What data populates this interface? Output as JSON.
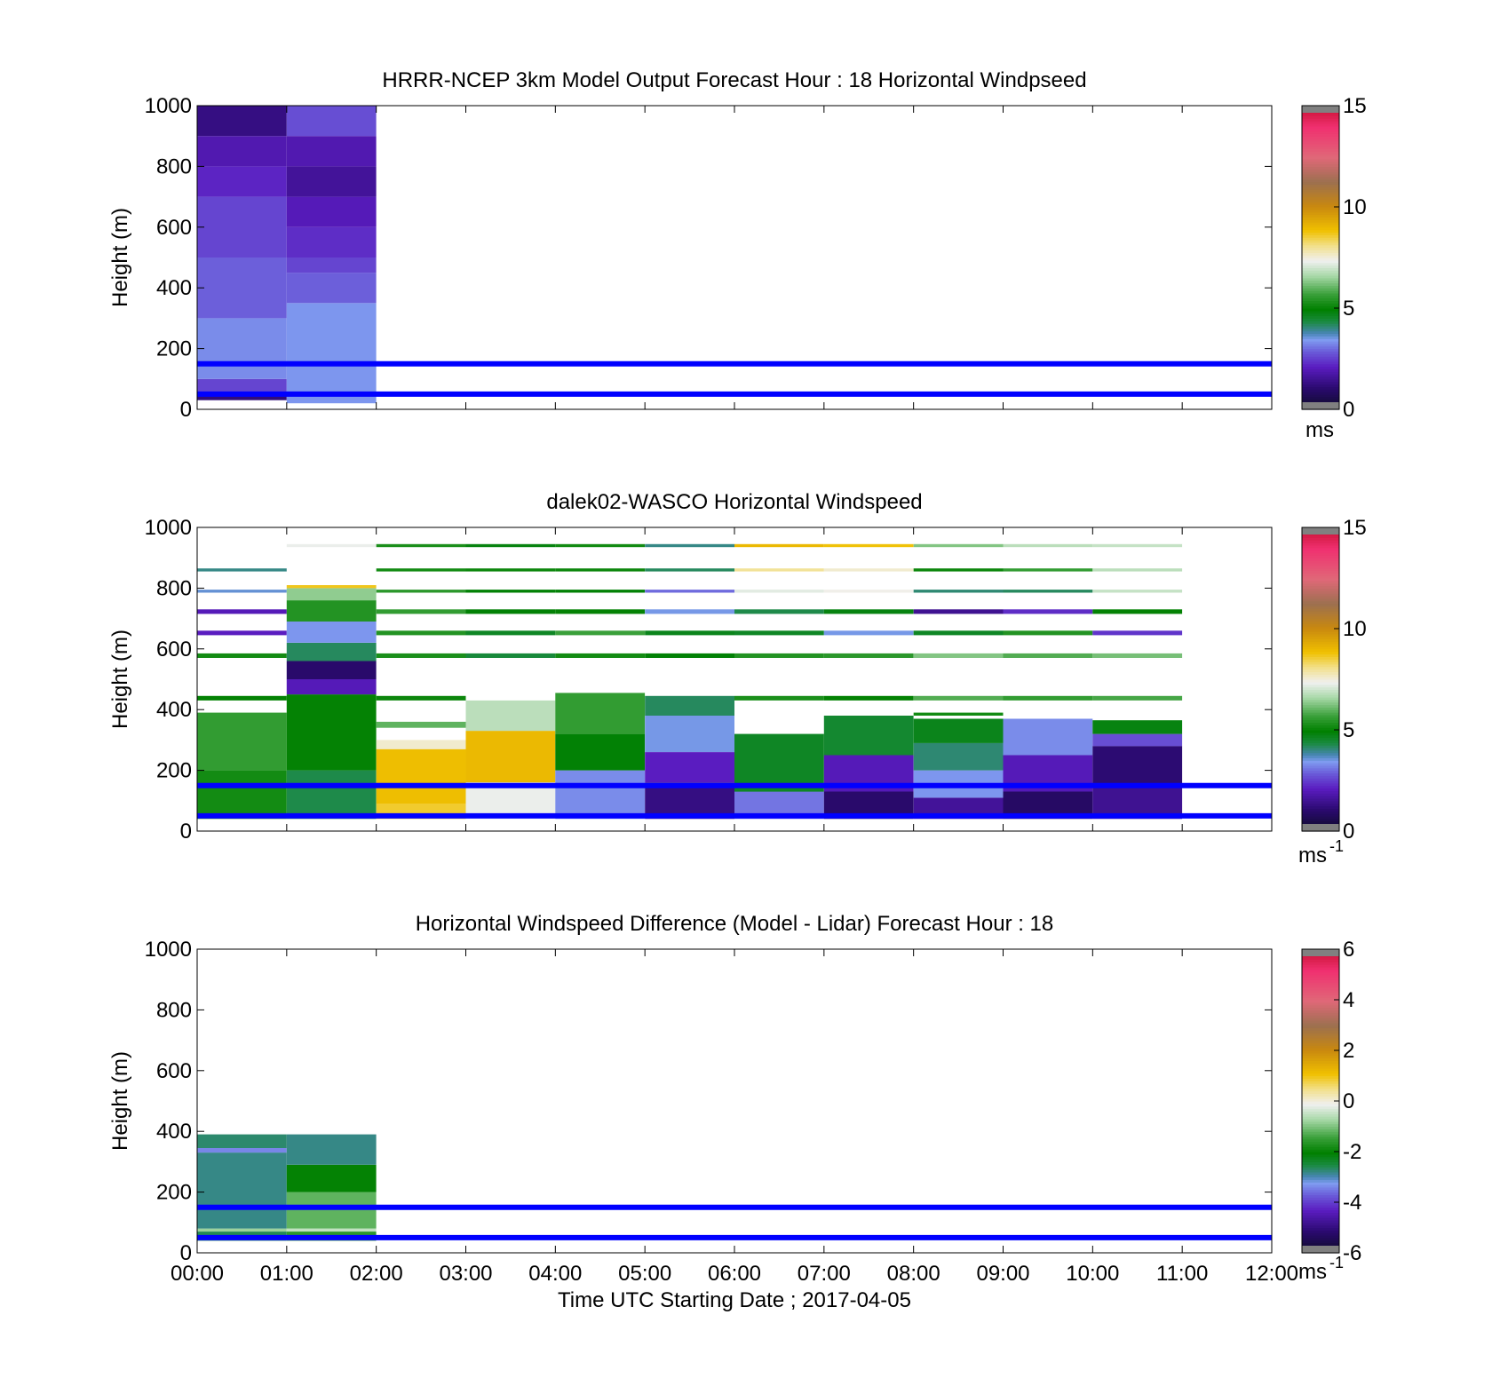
{
  "figure": {
    "xlabel": "Time UTC  Starting Date ; 2017-04-05",
    "time_ticks": [
      "00:00",
      "01:00",
      "02:00",
      "03:00",
      "04:00",
      "05:00",
      "06:00",
      "07:00",
      "08:00",
      "09:00",
      "10:00",
      "11:00",
      "12:00"
    ],
    "line_color": "#0000ff"
  },
  "chart_data": [
    {
      "type": "heatmap",
      "title": "HRRR-NCEP 3km Model Output   Forecast Hour : 18 Horizontal Windpseed",
      "ylabel": "Height (m)",
      "xlim": [
        0,
        12
      ],
      "ylim": [
        0,
        1000
      ],
      "yticks": [
        "0",
        "200",
        "400",
        "600",
        "800",
        "1000"
      ],
      "colorbar": {
        "min": 0,
        "max": 15,
        "ticks": [
          "0",
          "5",
          "10",
          "15"
        ],
        "unit": "ms",
        "unit_sup": ""
      },
      "reference_heights": [
        150,
        50
      ],
      "cells": [
        {
          "t0": 0,
          "t1": 1,
          "z0": 30,
          "z1": 50,
          "v": 1.2
        },
        {
          "t0": 0,
          "t1": 1,
          "z0": 50,
          "z1": 100,
          "v": 2.6
        },
        {
          "t0": 0,
          "t1": 1,
          "z0": 100,
          "z1": 300,
          "v": 3.3
        },
        {
          "t0": 0,
          "t1": 1,
          "z0": 300,
          "z1": 500,
          "v": 2.9
        },
        {
          "t0": 0,
          "t1": 1,
          "z0": 500,
          "z1": 700,
          "v": 2.6
        },
        {
          "t0": 0,
          "t1": 1,
          "z0": 700,
          "z1": 800,
          "v": 2.2
        },
        {
          "t0": 0,
          "t1": 1,
          "z0": 800,
          "z1": 900,
          "v": 1.9
        },
        {
          "t0": 0,
          "t1": 1,
          "z0": 900,
          "z1": 1000,
          "v": 1.3
        },
        {
          "t0": 1,
          "t1": 2,
          "z0": 20,
          "z1": 350,
          "v": 3.4
        },
        {
          "t0": 1,
          "t1": 2,
          "z0": 350,
          "z1": 450,
          "v": 2.9
        },
        {
          "t0": 1,
          "t1": 2,
          "z0": 450,
          "z1": 500,
          "v": 2.6
        },
        {
          "t0": 1,
          "t1": 2,
          "z0": 500,
          "z1": 600,
          "v": 2.3
        },
        {
          "t0": 1,
          "t1": 2,
          "z0": 600,
          "z1": 700,
          "v": 2.0
        },
        {
          "t0": 1,
          "t1": 2,
          "z0": 700,
          "z1": 800,
          "v": 1.6
        },
        {
          "t0": 1,
          "t1": 2,
          "z0": 800,
          "z1": 900,
          "v": 1.9
        },
        {
          "t0": 1,
          "t1": 2,
          "z0": 900,
          "z1": 1000,
          "v": 2.7
        }
      ]
    },
    {
      "type": "heatmap",
      "title": "dalek02-WASCO  Horizontal Windspeed",
      "ylabel": "Height (m)",
      "xlim": [
        0,
        12
      ],
      "ylim": [
        0,
        1000
      ],
      "yticks": [
        "0",
        "200",
        "400",
        "600",
        "800",
        "1000"
      ],
      "colorbar": {
        "min": 0,
        "max": 15,
        "ticks": [
          "0",
          "5",
          "10",
          "15"
        ],
        "unit": "ms",
        "unit_sup": "-1"
      },
      "reference_heights": [
        150,
        50
      ],
      "cells": [
        {
          "t0": 0,
          "t1": 1,
          "z0": 40,
          "z1": 200,
          "v": 5.2
        },
        {
          "t0": 0,
          "t1": 1,
          "z0": 200,
          "z1": 390,
          "v": 5.6
        },
        {
          "t0": 0,
          "t1": 1,
          "z0": 430,
          "z1": 445,
          "v": 5.0
        },
        {
          "t0": 0,
          "t1": 1,
          "z0": 570,
          "z1": 585,
          "v": 5.2
        },
        {
          "t0": 0,
          "t1": 1,
          "z0": 645,
          "z1": 660,
          "v": 2.1
        },
        {
          "t0": 0,
          "t1": 1,
          "z0": 715,
          "z1": 730,
          "v": 2.0
        },
        {
          "t0": 0,
          "t1": 1,
          "z0": 785,
          "z1": 795,
          "v": 3.6
        },
        {
          "t0": 0,
          "t1": 1,
          "z0": 855,
          "z1": 865,
          "v": 4.0
        },
        {
          "t0": 1,
          "t1": 2,
          "z0": 40,
          "z1": 200,
          "v": 4.3
        },
        {
          "t0": 1,
          "t1": 2,
          "z0": 200,
          "z1": 450,
          "v": 5.0
        },
        {
          "t0": 1,
          "t1": 2,
          "z0": 450,
          "z1": 500,
          "v": 2.0
        },
        {
          "t0": 1,
          "t1": 2,
          "z0": 500,
          "z1": 560,
          "v": 1.0
        },
        {
          "t0": 1,
          "t1": 2,
          "z0": 560,
          "z1": 620,
          "v": 4.2
        },
        {
          "t0": 1,
          "t1": 2,
          "z0": 620,
          "z1": 690,
          "v": 3.4
        },
        {
          "t0": 1,
          "t1": 2,
          "z0": 690,
          "z1": 760,
          "v": 5.4
        },
        {
          "t0": 1,
          "t1": 2,
          "z0": 760,
          "z1": 800,
          "v": 6.4
        },
        {
          "t0": 1,
          "t1": 2,
          "z0": 800,
          "z1": 810,
          "v": 8.7
        },
        {
          "t0": 1,
          "t1": 2,
          "z0": 935,
          "z1": 945,
          "v": 7.3
        },
        {
          "t0": 2,
          "t1": 3,
          "z0": 40,
          "z1": 90,
          "v": 8.6
        },
        {
          "t0": 2,
          "t1": 3,
          "z0": 90,
          "z1": 270,
          "v": 8.9
        },
        {
          "t0": 2,
          "t1": 3,
          "z0": 270,
          "z1": 300,
          "v": 7.6
        },
        {
          "t0": 2,
          "t1": 3,
          "z0": 340,
          "z1": 360,
          "v": 6.0
        },
        {
          "t0": 2,
          "t1": 3,
          "z0": 430,
          "z1": 445,
          "v": 5.1
        },
        {
          "t0": 2,
          "t1": 3,
          "z0": 570,
          "z1": 585,
          "v": 5.3
        },
        {
          "t0": 2,
          "t1": 3,
          "z0": 645,
          "z1": 660,
          "v": 5.4
        },
        {
          "t0": 2,
          "t1": 3,
          "z0": 715,
          "z1": 730,
          "v": 5.6
        },
        {
          "t0": 2,
          "t1": 3,
          "z0": 785,
          "z1": 795,
          "v": 5.5
        },
        {
          "t0": 2,
          "t1": 3,
          "z0": 855,
          "z1": 865,
          "v": 5.2
        },
        {
          "t0": 2,
          "t1": 3,
          "z0": 935,
          "z1": 945,
          "v": 5.3
        },
        {
          "t0": 3,
          "t1": 4,
          "z0": 40,
          "z1": 160,
          "v": 7.3
        },
        {
          "t0": 3,
          "t1": 4,
          "z0": 160,
          "z1": 330,
          "v": 9.0
        },
        {
          "t0": 3,
          "t1": 4,
          "z0": 330,
          "z1": 430,
          "v": 6.8
        },
        {
          "t0": 3,
          "t1": 4,
          "z0": 570,
          "z1": 585,
          "v": 4.4
        },
        {
          "t0": 3,
          "t1": 4,
          "z0": 645,
          "z1": 660,
          "v": 4.6
        },
        {
          "t0": 3,
          "t1": 4,
          "z0": 715,
          "z1": 730,
          "v": 4.9
        },
        {
          "t0": 3,
          "t1": 4,
          "z0": 785,
          "z1": 795,
          "v": 4.9
        },
        {
          "t0": 3,
          "t1": 4,
          "z0": 855,
          "z1": 865,
          "v": 5.1
        },
        {
          "t0": 3,
          "t1": 4,
          "z0": 935,
          "z1": 945,
          "v": 4.8
        },
        {
          "t0": 4,
          "t1": 5,
          "z0": 40,
          "z1": 200,
          "v": 3.3
        },
        {
          "t0": 4,
          "t1": 5,
          "z0": 200,
          "z1": 320,
          "v": 4.9
        },
        {
          "t0": 4,
          "t1": 5,
          "z0": 320,
          "z1": 455,
          "v": 5.6
        },
        {
          "t0": 4,
          "t1": 5,
          "z0": 570,
          "z1": 585,
          "v": 5.2
        },
        {
          "t0": 4,
          "t1": 5,
          "z0": 645,
          "z1": 660,
          "v": 5.7
        },
        {
          "t0": 4,
          "t1": 5,
          "z0": 715,
          "z1": 730,
          "v": 5.0
        },
        {
          "t0": 4,
          "t1": 5,
          "z0": 785,
          "z1": 795,
          "v": 4.9
        },
        {
          "t0": 4,
          "t1": 5,
          "z0": 855,
          "z1": 865,
          "v": 5.1
        },
        {
          "t0": 4,
          "t1": 5,
          "z0": 935,
          "z1": 945,
          "v": 5.2
        },
        {
          "t0": 5,
          "t1": 6,
          "z0": 40,
          "z1": 160,
          "v": 1.3
        },
        {
          "t0": 5,
          "t1": 6,
          "z0": 160,
          "z1": 260,
          "v": 2.1
        },
        {
          "t0": 5,
          "t1": 6,
          "z0": 260,
          "z1": 380,
          "v": 3.5
        },
        {
          "t0": 5,
          "t1": 6,
          "z0": 380,
          "z1": 445,
          "v": 4.2
        },
        {
          "t0": 5,
          "t1": 6,
          "z0": 570,
          "z1": 585,
          "v": 4.9
        },
        {
          "t0": 5,
          "t1": 6,
          "z0": 645,
          "z1": 660,
          "v": 4.7
        },
        {
          "t0": 5,
          "t1": 6,
          "z0": 715,
          "z1": 730,
          "v": 3.5
        },
        {
          "t0": 5,
          "t1": 6,
          "z0": 785,
          "z1": 795,
          "v": 3.0
        },
        {
          "t0": 5,
          "t1": 6,
          "z0": 855,
          "z1": 865,
          "v": 4.2
        },
        {
          "t0": 5,
          "t1": 6,
          "z0": 935,
          "z1": 945,
          "v": 4.0
        },
        {
          "t0": 6,
          "t1": 7,
          "z0": 40,
          "z1": 130,
          "v": 3.1
        },
        {
          "t0": 6,
          "t1": 7,
          "z0": 130,
          "z1": 320,
          "v": 4.6
        },
        {
          "t0": 6,
          "t1": 7,
          "z0": 430,
          "z1": 445,
          "v": 5.3
        },
        {
          "t0": 6,
          "t1": 7,
          "z0": 570,
          "z1": 585,
          "v": 5.4
        },
        {
          "t0": 6,
          "t1": 7,
          "z0": 645,
          "z1": 660,
          "v": 4.6
        },
        {
          "t0": 6,
          "t1": 7,
          "z0": 715,
          "z1": 730,
          "v": 4.3
        },
        {
          "t0": 6,
          "t1": 7,
          "z0": 785,
          "z1": 795,
          "v": 7.2
        },
        {
          "t0": 6,
          "t1": 7,
          "z0": 855,
          "z1": 865,
          "v": 8.0
        },
        {
          "t0": 6,
          "t1": 7,
          "z0": 935,
          "z1": 945,
          "v": 9.0
        },
        {
          "t0": 7,
          "t1": 8,
          "z0": 40,
          "z1": 130,
          "v": 1.0
        },
        {
          "t0": 7,
          "t1": 8,
          "z0": 130,
          "z1": 250,
          "v": 2.0
        },
        {
          "t0": 7,
          "t1": 8,
          "z0": 250,
          "z1": 380,
          "v": 4.5
        },
        {
          "t0": 7,
          "t1": 8,
          "z0": 430,
          "z1": 445,
          "v": 5.0
        },
        {
          "t0": 7,
          "t1": 8,
          "z0": 570,
          "z1": 585,
          "v": 5.5
        },
        {
          "t0": 7,
          "t1": 8,
          "z0": 645,
          "z1": 660,
          "v": 3.5
        },
        {
          "t0": 7,
          "t1": 8,
          "z0": 715,
          "z1": 730,
          "v": 4.8
        },
        {
          "t0": 7,
          "t1": 8,
          "z0": 785,
          "z1": 795,
          "v": 7.4
        },
        {
          "t0": 7,
          "t1": 8,
          "z0": 855,
          "z1": 865,
          "v": 7.6
        },
        {
          "t0": 7,
          "t1": 8,
          "z0": 935,
          "z1": 945,
          "v": 8.8
        },
        {
          "t0": 8,
          "t1": 9,
          "z0": 40,
          "z1": 110,
          "v": 1.6
        },
        {
          "t0": 8,
          "t1": 9,
          "z0": 110,
          "z1": 200,
          "v": 3.4
        },
        {
          "t0": 8,
          "t1": 9,
          "z0": 200,
          "z1": 290,
          "v": 4.1
        },
        {
          "t0": 8,
          "t1": 9,
          "z0": 290,
          "z1": 370,
          "v": 4.7
        },
        {
          "t0": 8,
          "t1": 9,
          "z0": 380,
          "z1": 390,
          "v": 5.2
        },
        {
          "t0": 8,
          "t1": 9,
          "z0": 430,
          "z1": 445,
          "v": 5.9
        },
        {
          "t0": 8,
          "t1": 9,
          "z0": 570,
          "z1": 585,
          "v": 6.3
        },
        {
          "t0": 8,
          "t1": 9,
          "z0": 645,
          "z1": 660,
          "v": 4.6
        },
        {
          "t0": 8,
          "t1": 9,
          "z0": 715,
          "z1": 730,
          "v": 1.5
        },
        {
          "t0": 8,
          "t1": 9,
          "z0": 785,
          "z1": 795,
          "v": 4.1
        },
        {
          "t0": 8,
          "t1": 9,
          "z0": 855,
          "z1": 865,
          "v": 5.1
        },
        {
          "t0": 8,
          "t1": 9,
          "z0": 935,
          "z1": 945,
          "v": 6.3
        },
        {
          "t0": 9,
          "t1": 10,
          "z0": 40,
          "z1": 130,
          "v": 0.9
        },
        {
          "t0": 9,
          "t1": 10,
          "z0": 130,
          "z1": 250,
          "v": 2.0
        },
        {
          "t0": 9,
          "t1": 10,
          "z0": 250,
          "z1": 370,
          "v": 3.3
        },
        {
          "t0": 9,
          "t1": 10,
          "z0": 430,
          "z1": 445,
          "v": 5.6
        },
        {
          "t0": 9,
          "t1": 10,
          "z0": 570,
          "z1": 585,
          "v": 5.9
        },
        {
          "t0": 9,
          "t1": 10,
          "z0": 645,
          "z1": 660,
          "v": 5.4
        },
        {
          "t0": 9,
          "t1": 10,
          "z0": 715,
          "z1": 730,
          "v": 2.3
        },
        {
          "t0": 9,
          "t1": 10,
          "z0": 785,
          "z1": 795,
          "v": 4.2
        },
        {
          "t0": 9,
          "t1": 10,
          "z0": 855,
          "z1": 865,
          "v": 5.6
        },
        {
          "t0": 9,
          "t1": 10,
          "z0": 935,
          "z1": 945,
          "v": 6.8
        },
        {
          "t0": 10,
          "t1": 11,
          "z0": 40,
          "z1": 150,
          "v": 1.5
        },
        {
          "t0": 10,
          "t1": 11,
          "z0": 150,
          "z1": 280,
          "v": 1.1
        },
        {
          "t0": 10,
          "t1": 11,
          "z0": 280,
          "z1": 320,
          "v": 2.7
        },
        {
          "t0": 10,
          "t1": 11,
          "z0": 320,
          "z1": 365,
          "v": 4.8
        },
        {
          "t0": 10,
          "t1": 11,
          "z0": 430,
          "z1": 445,
          "v": 5.8
        },
        {
          "t0": 10,
          "t1": 11,
          "z0": 570,
          "z1": 585,
          "v": 6.2
        },
        {
          "t0": 10,
          "t1": 11,
          "z0": 645,
          "z1": 660,
          "v": 2.4
        },
        {
          "t0": 10,
          "t1": 11,
          "z0": 715,
          "z1": 730,
          "v": 5.0
        },
        {
          "t0": 10,
          "t1": 11,
          "z0": 785,
          "z1": 795,
          "v": 6.9
        },
        {
          "t0": 10,
          "t1": 11,
          "z0": 855,
          "z1": 865,
          "v": 6.8
        },
        {
          "t0": 10,
          "t1": 11,
          "z0": 935,
          "z1": 945,
          "v": 6.9
        }
      ]
    },
    {
      "type": "heatmap",
      "title": "Horizontal Windspeed Difference (Model - Lidar) Forecast Hour : 18",
      "ylabel": "Height (m)",
      "xlim": [
        0,
        12
      ],
      "ylim": [
        0,
        1000
      ],
      "yticks": [
        "0",
        "200",
        "400",
        "600",
        "800",
        "1000"
      ],
      "colorbar": {
        "min": -6,
        "max": 6,
        "ticks": [
          "-6",
          "-4",
          "-2",
          "0",
          "2",
          "4",
          "6"
        ],
        "unit": "ms",
        "unit_sup": "-1"
      },
      "reference_heights": [
        150,
        50
      ],
      "cells": [
        {
          "t0": 0,
          "t1": 1,
          "z0": 40,
          "z1": 70,
          "v": -2.6
        },
        {
          "t0": 0,
          "t1": 1,
          "z0": 70,
          "z1": 80,
          "v": -0.8
        },
        {
          "t0": 0,
          "t1": 1,
          "z0": 80,
          "z1": 330,
          "v": -2.8
        },
        {
          "t0": 0,
          "t1": 1,
          "z0": 330,
          "z1": 345,
          "v": -3.4
        },
        {
          "t0": 0,
          "t1": 1,
          "z0": 345,
          "z1": 390,
          "v": -2.7
        },
        {
          "t0": 1,
          "t1": 2,
          "z0": 40,
          "z1": 70,
          "v": -1.6
        },
        {
          "t0": 1,
          "t1": 2,
          "z0": 70,
          "z1": 80,
          "v": -0.5
        },
        {
          "t0": 1,
          "t1": 2,
          "z0": 80,
          "z1": 200,
          "v": -1.2
        },
        {
          "t0": 1,
          "t1": 2,
          "z0": 200,
          "z1": 290,
          "v": -2.0
        },
        {
          "t0": 1,
          "t1": 2,
          "z0": 290,
          "z1": 390,
          "v": -2.8
        }
      ]
    }
  ]
}
